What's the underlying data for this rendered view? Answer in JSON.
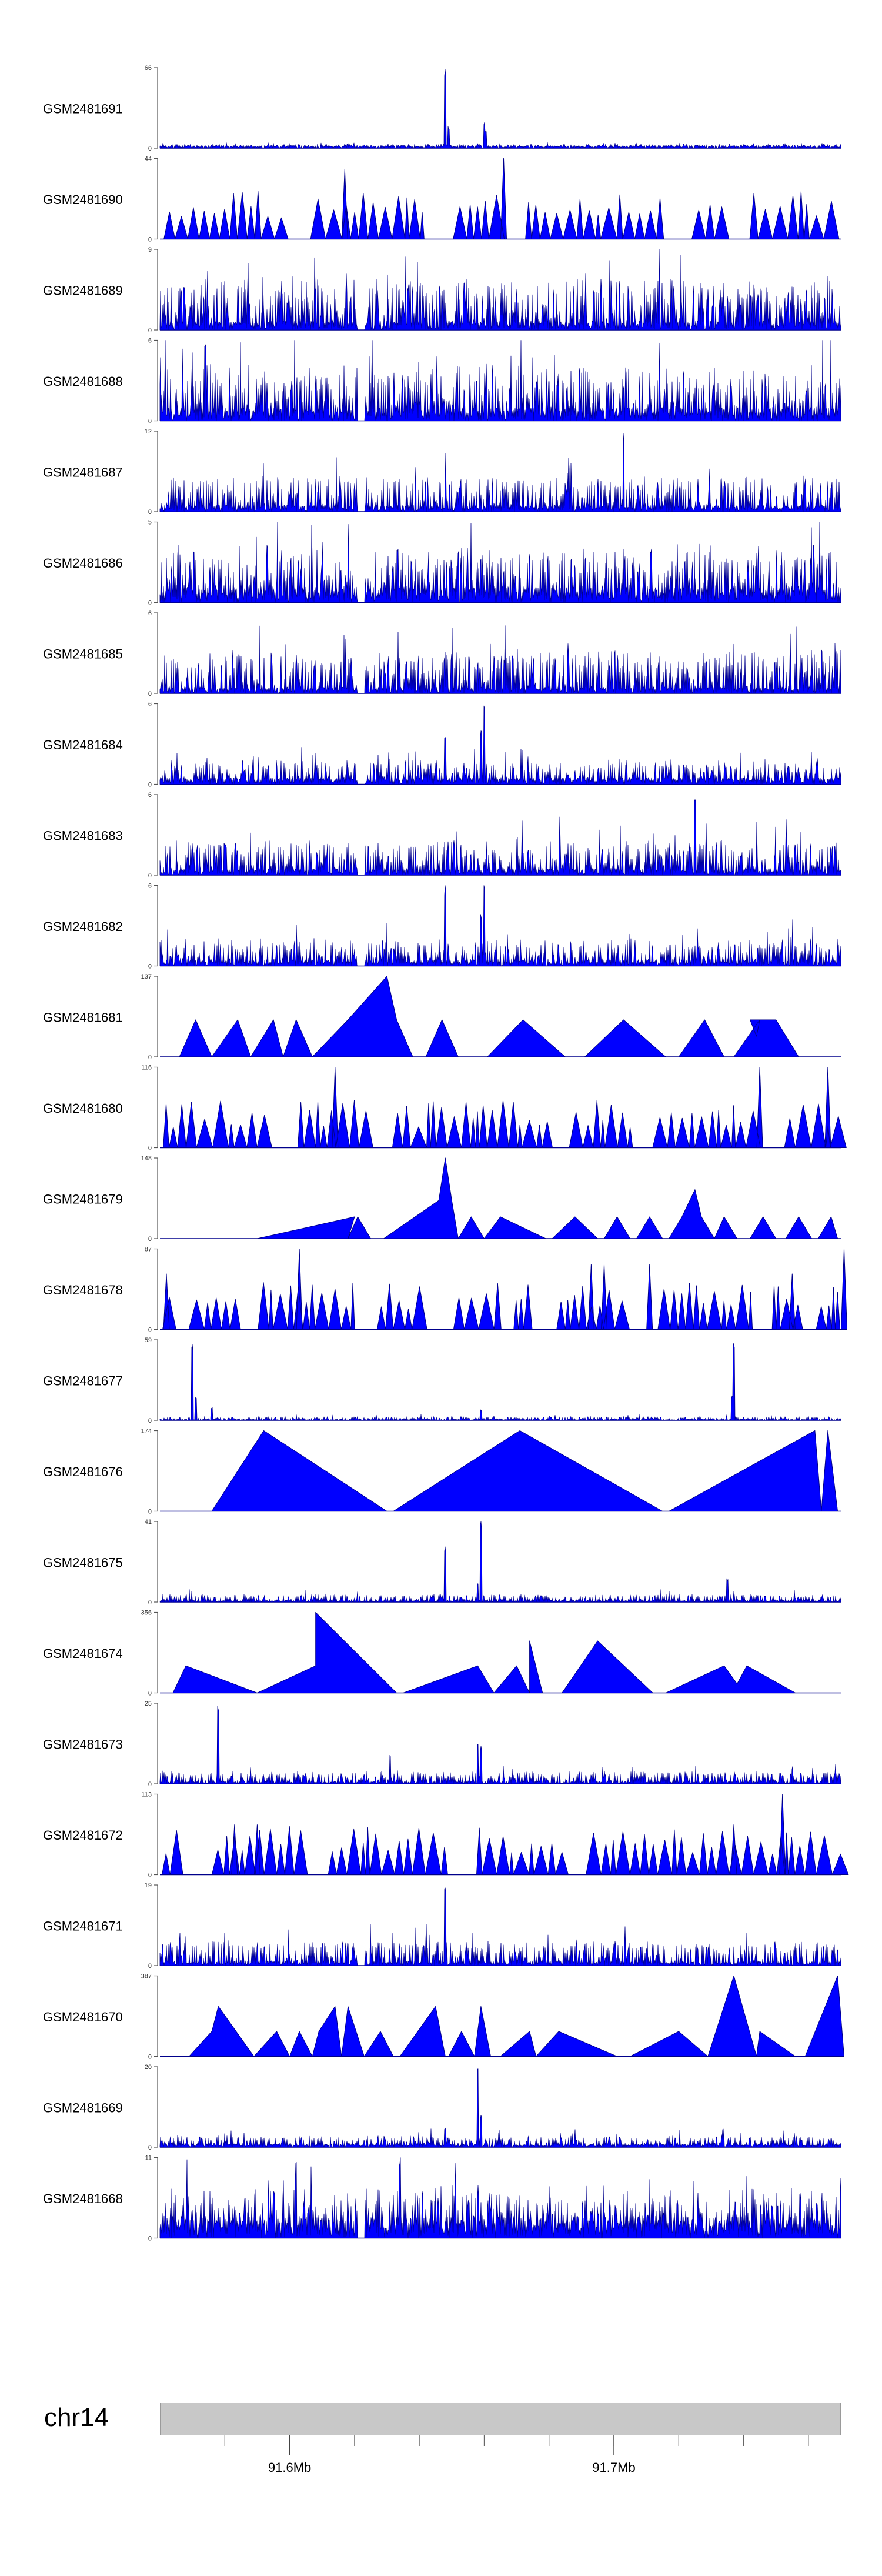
{
  "chart_data": {
    "type": "area",
    "title": "",
    "fill_color": "#0000ff",
    "stroke_color": "#00008b",
    "chromosome": "chr14",
    "axis": {
      "range_mb": [
        91.56,
        91.77
      ],
      "major_ticks": [
        {
          "mb": 91.6,
          "label": "91.6Mb"
        },
        {
          "mb": 91.7,
          "label": "91.7Mb"
        }
      ],
      "minor_ticks_mb": [
        91.58,
        91.6,
        91.62,
        91.64,
        91.66,
        91.68,
        91.7,
        91.72,
        91.74,
        91.76
      ]
    },
    "tracks": [
      {
        "name": "GSM2481691",
        "ymin": 0,
        "ymax": 66,
        "style": "dense",
        "baseline": 2,
        "noise": 4,
        "peaks": [
          [
            91.648,
            66
          ],
          [
            91.649,
            18
          ],
          [
            91.66,
            22
          ],
          [
            91.6605,
            14
          ]
        ]
      },
      {
        "name": "GSM2481690",
        "ymin": 0,
        "ymax": 44,
        "style": "sparse",
        "seed": 3,
        "peaks": [
          [
            91.617,
            38
          ],
          [
            91.666,
            44
          ]
        ]
      },
      {
        "name": "GSM2481689",
        "ymin": 0,
        "ymax": 9,
        "style": "dense",
        "baseline": 1,
        "noise": 9,
        "dip": 91.622
      },
      {
        "name": "GSM2481688",
        "ymin": 0,
        "ymax": 6,
        "style": "dense",
        "baseline": 1,
        "noise": 6,
        "dip": 91.622,
        "peaks": [
          [
            91.574,
            6
          ]
        ]
      },
      {
        "name": "GSM2481687",
        "ymin": 0,
        "ymax": 12,
        "style": "dense",
        "baseline": 1,
        "noise": 8,
        "dip": 91.622,
        "peaks": [
          [
            91.703,
            12
          ]
        ]
      },
      {
        "name": "GSM2481686",
        "ymin": 0,
        "ymax": 5,
        "style": "dense",
        "baseline": 1,
        "noise": 5,
        "dip": 91.622
      },
      {
        "name": "GSM2481685",
        "ymin": 0,
        "ymax": 6,
        "style": "dense",
        "baseline": 0.5,
        "noise": 5,
        "dip": 91.622
      },
      {
        "name": "GSM2481684",
        "ymin": 0,
        "ymax": 6,
        "style": "dense",
        "baseline": 0.5,
        "noise": 2.5,
        "dip": 91.622,
        "peaks": [
          [
            91.648,
            4
          ],
          [
            91.66,
            6
          ],
          [
            91.659,
            4
          ]
        ]
      },
      {
        "name": "GSM2481683",
        "ymin": 0,
        "ymax": 6,
        "style": "dense",
        "baseline": 0.5,
        "noise": 4,
        "dip": 91.622,
        "peaks": [
          [
            91.725,
            6
          ]
        ]
      },
      {
        "name": "GSM2481682",
        "ymin": 0,
        "ymax": 6,
        "style": "dense",
        "baseline": 0.5,
        "noise": 3,
        "dip": 91.622,
        "peaks": [
          [
            91.648,
            6
          ],
          [
            91.66,
            6
          ],
          [
            91.659,
            4
          ]
        ]
      },
      {
        "name": "GSM2481681",
        "ymin": 0,
        "ymax": 137,
        "style": "triangles",
        "points": [
          [
            91.566,
            0
          ],
          [
            91.571,
            63
          ],
          [
            91.576,
            0
          ],
          [
            91.584,
            63
          ],
          [
            91.588,
            0
          ],
          [
            91.595,
            63
          ],
          [
            91.598,
            0
          ],
          [
            91.602,
            63
          ],
          [
            91.607,
            0
          ],
          [
            91.618,
            63
          ],
          [
            91.63,
            137
          ],
          [
            91.633,
            63
          ],
          [
            91.638,
            0
          ],
          [
            91.642,
            0
          ],
          [
            91.647,
            63
          ],
          [
            91.652,
            0
          ],
          [
            91.661,
            0
          ],
          [
            91.672,
            63
          ],
          [
            91.685,
            0
          ],
          [
            91.691,
            0
          ],
          [
            91.703,
            63
          ],
          [
            91.716,
            0
          ],
          [
            91.72,
            0
          ],
          [
            91.728,
            63
          ],
          [
            91.734,
            0
          ],
          [
            91.737,
            0
          ],
          [
            91.745,
            63
          ],
          [
            91.744,
            35
          ],
          [
            91.742,
            63
          ],
          [
            91.75,
            63
          ],
          [
            91.757,
            0
          ]
        ]
      },
      {
        "name": "GSM2481680",
        "ymin": 0,
        "ymax": 116,
        "style": "sparse",
        "seed": 4,
        "peaks": [
          [
            91.614,
            116
          ],
          [
            91.745,
            116
          ],
          [
            91.766,
            116
          ]
        ]
      },
      {
        "name": "GSM2481679",
        "ymin": 0,
        "ymax": 148,
        "style": "triangles",
        "points": [
          [
            91.59,
            0
          ],
          [
            91.62,
            40
          ],
          [
            91.618,
            0
          ],
          [
            91.621,
            40
          ],
          [
            91.625,
            0
          ],
          [
            91.629,
            0
          ],
          [
            91.646,
            70
          ],
          [
            91.648,
            148
          ],
          [
            91.65,
            70
          ],
          [
            91.652,
            0
          ],
          [
            91.656,
            40
          ],
          [
            91.66,
            0
          ],
          [
            91.66,
            0
          ],
          [
            91.665,
            40
          ],
          [
            91.679,
            0
          ],
          [
            91.681,
            0
          ],
          [
            91.688,
            40
          ],
          [
            91.695,
            0
          ],
          [
            91.697,
            0
          ],
          [
            91.701,
            40
          ],
          [
            91.705,
            0
          ],
          [
            91.707,
            0
          ],
          [
            91.711,
            40
          ],
          [
            91.715,
            0
          ],
          [
            91.717,
            0
          ],
          [
            91.721,
            40
          ],
          [
            91.725,
            90
          ],
          [
            91.727,
            40
          ],
          [
            91.731,
            0
          ],
          [
            91.734,
            40
          ],
          [
            91.738,
            0
          ],
          [
            91.742,
            0
          ],
          [
            91.746,
            40
          ],
          [
            91.75,
            0
          ],
          [
            91.753,
            0
          ],
          [
            91.757,
            40
          ],
          [
            91.761,
            0
          ],
          [
            91.763,
            0
          ],
          [
            91.767,
            40
          ],
          [
            91.769,
            0
          ]
        ]
      },
      {
        "name": "GSM2481678",
        "ymin": 0,
        "ymax": 87,
        "style": "sparse",
        "seed": 5,
        "peaks": [
          [
            91.562,
            60
          ],
          [
            91.603,
            87
          ],
          [
            91.693,
            70
          ],
          [
            91.697,
            70
          ],
          [
            91.711,
            70
          ],
          [
            91.755,
            60
          ],
          [
            91.771,
            87
          ]
        ]
      },
      {
        "name": "GSM2481677",
        "ymin": 0,
        "ymax": 59,
        "style": "dense",
        "baseline": 0.8,
        "noise": 4,
        "peaks": [
          [
            91.57,
            59
          ],
          [
            91.571,
            18
          ],
          [
            91.576,
            10
          ],
          [
            91.659,
            8
          ],
          [
            91.737,
            59
          ],
          [
            91.7365,
            18
          ]
        ]
      },
      {
        "name": "GSM2481676",
        "ymin": 0,
        "ymax": 174,
        "style": "triangles",
        "points": [
          [
            91.576,
            0
          ],
          [
            91.592,
            174
          ],
          [
            91.63,
            0
          ],
          [
            91.632,
            0
          ],
          [
            91.671,
            174
          ],
          [
            91.715,
            0
          ],
          [
            91.717,
            0
          ],
          [
            91.762,
            174
          ],
          [
            91.764,
            0
          ],
          [
            91.766,
            174
          ],
          [
            91.769,
            0
          ]
        ]
      },
      {
        "name": "GSM2481675",
        "ymin": 0,
        "ymax": 41,
        "style": "dense",
        "baseline": 0.8,
        "noise": 6,
        "peaks": [
          [
            91.648,
            30
          ],
          [
            91.659,
            41
          ],
          [
            91.658,
            10
          ],
          [
            91.735,
            12
          ]
        ]
      },
      {
        "name": "GSM2481674",
        "ymin": 0,
        "ymax": 356,
        "style": "triangles",
        "points": [
          [
            91.564,
            0
          ],
          [
            91.568,
            120
          ],
          [
            91.59,
            0
          ],
          [
            91.608,
            120
          ],
          [
            91.608,
            356
          ],
          [
            91.633,
            0
          ],
          [
            91.635,
            0
          ],
          [
            91.658,
            120
          ],
          [
            91.663,
            0
          ],
          [
            91.67,
            120
          ],
          [
            91.674,
            0
          ],
          [
            91.674,
            230
          ],
          [
            91.678,
            0
          ],
          [
            91.684,
            0
          ],
          [
            91.695,
            230
          ],
          [
            91.712,
            0
          ],
          [
            91.716,
            0
          ],
          [
            91.734,
            120
          ],
          [
            91.738,
            40
          ],
          [
            91.741,
            120
          ],
          [
            91.756,
            0
          ]
        ]
      },
      {
        "name": "GSM2481673",
        "ymin": 0,
        "ymax": 25,
        "style": "dense",
        "baseline": 0.8,
        "noise": 6,
        "peaks": [
          [
            91.578,
            25
          ],
          [
            91.631,
            10
          ],
          [
            91.658,
            14
          ],
          [
            91.659,
            12
          ]
        ]
      },
      {
        "name": "GSM2481672",
        "ymin": 0,
        "ymax": 113,
        "style": "sparse",
        "seed": 6,
        "peaks": [
          [
            91.583,
            70
          ],
          [
            91.59,
            70
          ],
          [
            91.737,
            70
          ],
          [
            91.752,
            113
          ]
        ]
      },
      {
        "name": "GSM2481671",
        "ymin": 0,
        "ymax": 19,
        "style": "dense",
        "baseline": 1,
        "noise": 9,
        "dip": 91.622,
        "peaks": [
          [
            91.648,
            19
          ]
        ]
      },
      {
        "name": "GSM2481670",
        "ymin": 0,
        "ymax": 387,
        "style": "triangles",
        "points": [
          [
            91.569,
            0
          ],
          [
            91.576,
            120
          ],
          [
            91.578,
            240
          ],
          [
            91.589,
            0
          ],
          [
            91.596,
            120
          ],
          [
            91.6,
            0
          ],
          [
            91.603,
            120
          ],
          [
            91.607,
            0
          ],
          [
            91.609,
            120
          ],
          [
            91.614,
            240
          ],
          [
            91.616,
            0
          ],
          [
            91.618,
            240
          ],
          [
            91.623,
            0
          ],
          [
            91.628,
            120
          ],
          [
            91.632,
            0
          ],
          [
            91.634,
            0
          ],
          [
            91.645,
            240
          ],
          [
            91.648,
            0
          ],
          [
            91.649,
            0
          ],
          [
            91.653,
            120
          ],
          [
            91.657,
            0
          ],
          [
            91.659,
            240
          ],
          [
            91.662,
            0
          ],
          [
            91.665,
            0
          ],
          [
            91.674,
            120
          ],
          [
            91.676,
            0
          ],
          [
            91.683,
            120
          ],
          [
            91.701,
            0
          ],
          [
            91.705,
            0
          ],
          [
            91.72,
            120
          ],
          [
            91.729,
            0
          ],
          [
            91.737,
            387
          ],
          [
            91.744,
            0
          ],
          [
            91.745,
            120
          ],
          [
            91.756,
            0
          ],
          [
            91.759,
            0
          ],
          [
            91.769,
            387
          ],
          [
            91.771,
            0
          ]
        ]
      },
      {
        "name": "GSM2481669",
        "ymin": 0,
        "ymax": 20,
        "style": "dense",
        "baseline": 0.8,
        "noise": 4,
        "peaks": [
          [
            91.658,
            20
          ],
          [
            91.659,
            8
          ],
          [
            91.648,
            5
          ]
        ]
      },
      {
        "name": "GSM2481668",
        "ymin": 0,
        "ymax": 11,
        "style": "dense",
        "baseline": 3,
        "noise": 8,
        "dip": 91.622,
        "peaks": [
          [
            91.602,
            11
          ],
          [
            91.634,
            11
          ]
        ]
      }
    ]
  }
}
